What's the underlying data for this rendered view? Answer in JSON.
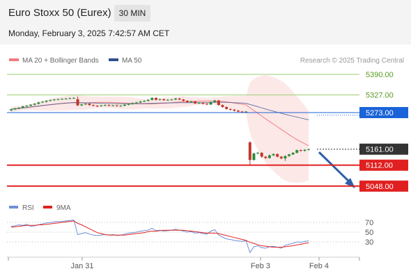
{
  "header": {
    "title": "Euro Stoxx 50 (Eurex)",
    "interval": "30 MIN",
    "datetime": "Monday, February 3, 2025 7:42:57 AM CET"
  },
  "legend": {
    "ma20_bb": "MA 20 + Bollinger Bands",
    "ma50": "MA 50",
    "credit": "Research © 2025 Trading Central",
    "rsi": "RSI",
    "rsi_ma": "9MA"
  },
  "colors": {
    "ma20": "#f07b7b",
    "ma50": "#2e4f8f",
    "bollinger_fill": "#fde2e2",
    "candle_up": "#2e8b3a",
    "candle_down": "#c0392b",
    "resistance": "#9acd70",
    "pivot": "#1a63d8",
    "support": "#e02020",
    "current": "#333333",
    "rsi": "#6f8fd8",
    "rsi_ma": "#e02020",
    "arrow": "#2e5fa8"
  },
  "chart_data": {
    "type": "candlestick",
    "price_axis": {
      "range": [
        5010,
        5420
      ]
    },
    "levels": [
      {
        "value": 5390.0,
        "label": "5390.00",
        "kind": "resistance"
      },
      {
        "value": 5327.0,
        "label": "5327.00",
        "kind": "resistance"
      },
      {
        "value": 5273.0,
        "label": "5273.00",
        "kind": "pivot"
      },
      {
        "value": 5161.0,
        "label": "5161.00",
        "kind": "current"
      },
      {
        "value": 5112.0,
        "label": "5112.00",
        "kind": "support"
      },
      {
        "value": 5048.0,
        "label": "5048.00",
        "kind": "support"
      }
    ],
    "x_labels": [
      "Jan 31",
      "Feb 3",
      "Feb 4"
    ],
    "candles": [
      [
        5280,
        5283,
        5277,
        5285
      ],
      [
        5283,
        5286,
        5281,
        5288
      ],
      [
        5286,
        5288,
        5284,
        5290
      ],
      [
        5288,
        5292,
        5286,
        5294
      ],
      [
        5292,
        5294,
        5290,
        5296
      ],
      [
        5294,
        5297,
        5292,
        5299
      ],
      [
        5297,
        5300,
        5295,
        5302
      ],
      [
        5300,
        5304,
        5298,
        5306
      ],
      [
        5304,
        5306,
        5302,
        5308
      ],
      [
        5306,
        5309,
        5304,
        5311
      ],
      [
        5309,
        5311,
        5307,
        5313
      ],
      [
        5311,
        5313,
        5309,
        5315
      ],
      [
        5313,
        5314,
        5311,
        5316
      ],
      [
        5314,
        5315,
        5312,
        5317
      ],
      [
        5315,
        5316,
        5313,
        5318
      ],
      [
        5316,
        5317,
        5314,
        5319
      ],
      [
        5317,
        5318,
        5315,
        5320
      ],
      [
        5314,
        5295,
        5293,
        5322
      ],
      [
        5295,
        5298,
        5293,
        5300
      ],
      [
        5298,
        5300,
        5296,
        5302
      ],
      [
        5300,
        5296,
        5294,
        5302
      ],
      [
        5296,
        5294,
        5292,
        5298
      ],
      [
        5294,
        5293,
        5290,
        5296
      ],
      [
        5293,
        5295,
        5291,
        5297
      ],
      [
        5295,
        5296,
        5293,
        5298
      ],
      [
        5296,
        5294,
        5292,
        5298
      ],
      [
        5294,
        5295,
        5292,
        5297
      ],
      [
        5295,
        5293,
        5291,
        5297
      ],
      [
        5293,
        5294,
        5291,
        5296
      ],
      [
        5294,
        5297,
        5292,
        5299
      ],
      [
        5297,
        5299,
        5295,
        5301
      ],
      [
        5299,
        5302,
        5297,
        5304
      ],
      [
        5302,
        5304,
        5300,
        5306
      ],
      [
        5304,
        5307,
        5302,
        5309
      ],
      [
        5307,
        5309,
        5305,
        5311
      ],
      [
        5309,
        5312,
        5307,
        5314
      ],
      [
        5312,
        5318,
        5310,
        5320
      ],
      [
        5318,
        5312,
        5310,
        5320
      ],
      [
        5312,
        5314,
        5310,
        5316
      ],
      [
        5314,
        5311,
        5309,
        5316
      ],
      [
        5311,
        5312,
        5309,
        5314
      ],
      [
        5312,
        5313,
        5310,
        5315
      ],
      [
        5313,
        5316,
        5311,
        5318
      ],
      [
        5316,
        5313,
        5311,
        5318
      ],
      [
        5313,
        5309,
        5307,
        5315
      ],
      [
        5309,
        5305,
        5303,
        5311
      ],
      [
        5305,
        5307,
        5303,
        5309
      ],
      [
        5307,
        5301,
        5299,
        5309
      ],
      [
        5301,
        5303,
        5299,
        5305
      ],
      [
        5303,
        5300,
        5298,
        5305
      ],
      [
        5300,
        5298,
        5296,
        5302
      ],
      [
        5298,
        5305,
        5296,
        5307
      ],
      [
        5305,
        5310,
        5303,
        5312
      ],
      [
        5310,
        5296,
        5294,
        5312
      ],
      [
        5296,
        5290,
        5288,
        5298
      ],
      [
        5290,
        5284,
        5282,
        5292
      ],
      [
        5284,
        5282,
        5279,
        5286
      ],
      [
        5282,
        5279,
        5276,
        5284
      ],
      [
        5279,
        5276,
        5274,
        5281
      ],
      [
        5276,
        5274,
        5272,
        5278
      ],
      [
        5274,
        5276,
        5272,
        5278
      ],
      [
        5182,
        5128,
        5110,
        5185
      ],
      [
        5128,
        5148,
        5126,
        5150
      ],
      [
        5148,
        5150,
        5145,
        5153
      ],
      [
        5150,
        5138,
        5135,
        5152
      ],
      [
        5138,
        5134,
        5131,
        5140
      ],
      [
        5134,
        5142,
        5132,
        5145
      ],
      [
        5142,
        5146,
        5140,
        5148
      ],
      [
        5146,
        5138,
        5136,
        5148
      ],
      [
        5138,
        5133,
        5130,
        5140
      ],
      [
        5133,
        5140,
        5125,
        5142
      ],
      [
        5140,
        5145,
        5138,
        5147
      ],
      [
        5145,
        5150,
        5143,
        5152
      ],
      [
        5150,
        5158,
        5148,
        5160
      ],
      [
        5158,
        5156,
        5153,
        5160
      ],
      [
        5156,
        5159,
        5154,
        5161
      ],
      [
        5159,
        5161,
        5157,
        5163
      ]
    ],
    "rsi": {
      "range": [
        0,
        100
      ],
      "ticks": [
        70,
        50,
        30
      ],
      "values": [
        62,
        63,
        65,
        64,
        66,
        62,
        63,
        65,
        67,
        69,
        70,
        71,
        72,
        72,
        73,
        74,
        75,
        45,
        47,
        49,
        46,
        44,
        43,
        44,
        45,
        44,
        45,
        43,
        44,
        46,
        48,
        49,
        50,
        52,
        53,
        54,
        58,
        53,
        54,
        52,
        53,
        54,
        56,
        54,
        52,
        50,
        51,
        48,
        49,
        47,
        46,
        52,
        55,
        44,
        40,
        36,
        35,
        33,
        32,
        31,
        32,
        8,
        20,
        22,
        18,
        17,
        20,
        21,
        19,
        17,
        23,
        25,
        27,
        30,
        29,
        31,
        32
      ],
      "ma_values": [
        60,
        61,
        62,
        63,
        64,
        64,
        64,
        65,
        65,
        66,
        67,
        68,
        69,
        70,
        71,
        72,
        73,
        68,
        65,
        61,
        57,
        53,
        49,
        47,
        45,
        44,
        44,
        44,
        44,
        44,
        45,
        46,
        47,
        48,
        49,
        51,
        52,
        52,
        53,
        54,
        54,
        54,
        54,
        54,
        54,
        53,
        52,
        51,
        50,
        49,
        48,
        48,
        48,
        47,
        45,
        43,
        41,
        39,
        37,
        35,
        33,
        29,
        27,
        24,
        22,
        21,
        20,
        19,
        19,
        19,
        20,
        21,
        22,
        24,
        25,
        27,
        28
      ]
    }
  }
}
